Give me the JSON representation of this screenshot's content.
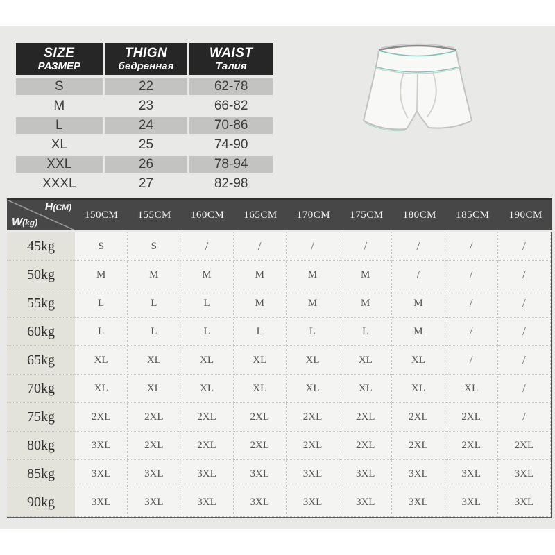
{
  "page": {
    "background": "#e9e9e8",
    "accent_teal": "#76c3b8",
    "top_header_bg": "#262626",
    "gray_row_bg": "#c3c3c2",
    "matrix_header_bg": "#474747",
    "weight_col_bg": "#e3e3dc",
    "cell_bg": "#f4f4f2"
  },
  "size_table": {
    "headers": [
      {
        "en": "SIZE",
        "ru": "РАЗМЕР"
      },
      {
        "en": "THIGN",
        "ru": "бедренная"
      },
      {
        "en": "WAIST",
        "ru": "Талия"
      }
    ],
    "rows": [
      {
        "size": "S",
        "thign": "22",
        "waist": "62-78"
      },
      {
        "size": "M",
        "thign": "23",
        "waist": "66-82"
      },
      {
        "size": "L",
        "thign": "24",
        "waist": "70-86"
      },
      {
        "size": "XL",
        "thign": "25",
        "waist": "74-90"
      },
      {
        "size": "XXL",
        "thign": "26",
        "waist": "78-94"
      },
      {
        "size": "XXXL",
        "thign": "27",
        "waist": "82-98"
      }
    ]
  },
  "illustration": {
    "name": "boxer-briefs-line-drawing",
    "accent": "#76c3b8",
    "outline": "#c2c2bd"
  },
  "matrix_table": {
    "corner": {
      "h": "H",
      "h_unit": "(CM)",
      "w": "W",
      "w_unit": "(kg)"
    },
    "height_columns": [
      "150CM",
      "155CM",
      "160CM",
      "165CM",
      "170CM",
      "175CM",
      "180CM",
      "185CM",
      "190CM"
    ],
    "rows": [
      {
        "weight": "45kg",
        "sizes": [
          "S",
          "S",
          "/",
          "/",
          "/",
          "/",
          "/",
          "/",
          "/"
        ]
      },
      {
        "weight": "50kg",
        "sizes": [
          "M",
          "M",
          "M",
          "M",
          "M",
          "M",
          "/",
          "/",
          "/"
        ]
      },
      {
        "weight": "55kg",
        "sizes": [
          "L",
          "L",
          "L",
          "M",
          "M",
          "M",
          "M",
          "/",
          "/"
        ]
      },
      {
        "weight": "60kg",
        "sizes": [
          "L",
          "L",
          "L",
          "L",
          "L",
          "L",
          "M",
          "/",
          "/"
        ]
      },
      {
        "weight": "65kg",
        "sizes": [
          "XL",
          "XL",
          "XL",
          "XL",
          "XL",
          "XL",
          "XL",
          "/",
          "/"
        ]
      },
      {
        "weight": "70kg",
        "sizes": [
          "XL",
          "XL",
          "XL",
          "XL",
          "XL",
          "XL",
          "XL",
          "XL",
          "/"
        ]
      },
      {
        "weight": "75kg",
        "sizes": [
          "2XL",
          "2XL",
          "2XL",
          "2XL",
          "2XL",
          "2XL",
          "2XL",
          "2XL",
          "/"
        ]
      },
      {
        "weight": "80kg",
        "sizes": [
          "3XL",
          "2XL",
          "2XL",
          "2XL",
          "2XL",
          "2XL",
          "2XL",
          "2XL",
          "2XL"
        ]
      },
      {
        "weight": "85kg",
        "sizes": [
          "3XL",
          "3XL",
          "3XL",
          "3XL",
          "3XL",
          "3XL",
          "3XL",
          "3XL",
          "3XL"
        ]
      },
      {
        "weight": "90kg",
        "sizes": [
          "3XL",
          "3XL",
          "3XL",
          "3XL",
          "3XL",
          "3XL",
          "3XL",
          "3XL",
          "3XL"
        ]
      }
    ]
  }
}
